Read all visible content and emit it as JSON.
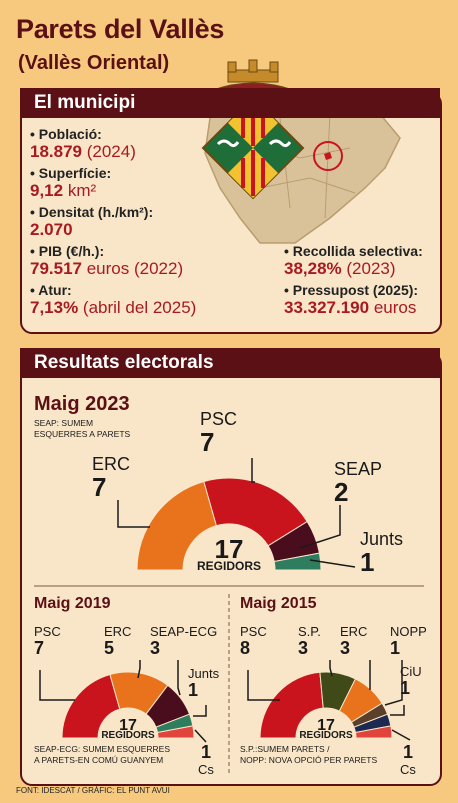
{
  "header": {
    "title": "Parets del Vallès",
    "subtitle": "(Vallès Oriental)"
  },
  "municipi": {
    "band": "El municipi",
    "left": [
      {
        "label": "• Població:",
        "value": "18.879",
        "note": " (2024)"
      },
      {
        "label": "• Superfície:",
        "value": "9,12",
        "note": " km²"
      },
      {
        "label": "• Densitat (h./km²):",
        "value": "2.070",
        "note": ""
      },
      {
        "label": "• PIB (€/h.):",
        "value": "79.517",
        "note": " euros (2022)"
      },
      {
        "label": "• Atur:",
        "value": "7,13%",
        "note": " (abril del 2025)"
      }
    ],
    "right": [
      {
        "label": "• Recollida selectiva:",
        "value": "38,28%",
        "note": " (2023)"
      },
      {
        "label": "• Pressupost (2025):",
        "value": "33.327.190",
        "note": " euros"
      }
    ]
  },
  "resultats": {
    "band": "Resultats electorals"
  },
  "chart_data": [
    {
      "type": "pie",
      "title": "Maig 2023",
      "center_label": {
        "number": "17",
        "text": "REGIDORS"
      },
      "note": [
        "SEAP: SUMEM",
        "ESQUERRES A PARETS"
      ],
      "series": [
        {
          "name": "ERC",
          "value": 7,
          "color": "#e8731c"
        },
        {
          "name": "PSC",
          "value": 7,
          "color": "#c9141e"
        },
        {
          "name": "SEAP",
          "value": 2,
          "color": "#4a0d1d"
        },
        {
          "name": "Junts",
          "value": 1,
          "color": "#2e7d5e"
        }
      ]
    },
    {
      "type": "pie",
      "title": "Maig 2019",
      "center_label": {
        "number": "17",
        "text": "REGIDORS"
      },
      "note": [
        "SEAP-ECG: SUMEM ESQUERRES",
        "A PARETS-EN COMÚ GUANYEM"
      ],
      "series": [
        {
          "name": "PSC",
          "value": 7,
          "color": "#c9141e"
        },
        {
          "name": "ERC",
          "value": 5,
          "color": "#e8731c"
        },
        {
          "name": "SEAP-ECG",
          "value": 3,
          "color": "#4a0d1d"
        },
        {
          "name": "Junts",
          "value": 1,
          "color": "#2e7d5e"
        },
        {
          "name": "Cs",
          "value": 1,
          "color": "#e0443a"
        }
      ]
    },
    {
      "type": "pie",
      "title": "Maig 2015",
      "center_label": {
        "number": "17",
        "text": "REGIDORS"
      },
      "note": [
        "S.P.:SUMEM PARETS  /",
        "NOPP: NOVA OPCIÓ PER PARETS"
      ],
      "series": [
        {
          "name": "PSC",
          "value": 8,
          "color": "#c9141e"
        },
        {
          "name": "S.P.",
          "value": 3,
          "color": "#3f4a18"
        },
        {
          "name": "ERC",
          "value": 3,
          "color": "#e8731c"
        },
        {
          "name": "NOPP",
          "value": 1,
          "color": "#5a3f2a"
        },
        {
          "name": "CiU",
          "value": 1,
          "color": "#1c2a52"
        },
        {
          "name": "Cs",
          "value": 1,
          "color": "#e0443a"
        }
      ]
    }
  ],
  "footer": "FONT: IDESCAT / GRÀFIC: EL PUNT AVUI"
}
